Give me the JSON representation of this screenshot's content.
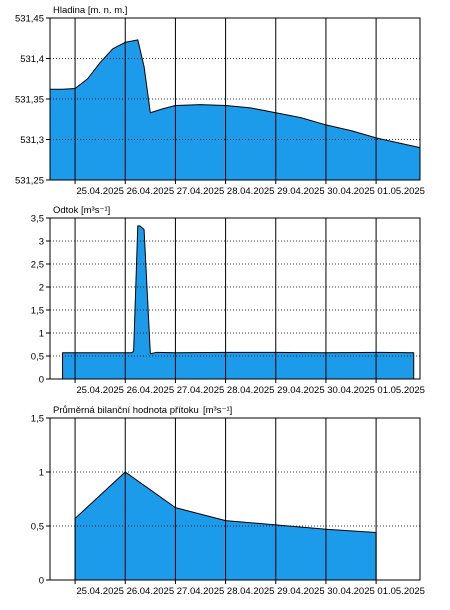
{
  "colors": {
    "fill": "#1c9bea",
    "outline": "#000000",
    "grid": "#000000",
    "background": "#ffffff"
  },
  "chart_data": [
    {
      "type": "area",
      "title": "Hladina [m. n. m.]",
      "x_ticks": [
        "25.04.2025",
        "26.04.2025",
        "27.04.2025",
        "28.04.2025",
        "29.04.2025",
        "30.04.2025",
        "01.05.2025"
      ],
      "x_range": [
        "24.04.2025 12:00",
        "01.05.2025 21:00"
      ],
      "ylim": [
        531.25,
        531.45
      ],
      "y_ticks": [
        531.25,
        531.3,
        531.35,
        531.4,
        531.45
      ],
      "y_tick_labels": [
        "531,25",
        "531,3",
        "531,35",
        "531,4",
        "531,45"
      ],
      "grid": {
        "x": "solid",
        "y": "dotted"
      },
      "series": [
        {
          "x": [
            "24.04.2025 12:00",
            "24.04.2025 18:00",
            "25.04.2025 00:00",
            "25.04.2025 06:00",
            "25.04.2025 12:00",
            "25.04.2025 18:00",
            "26.04.2025 00:00",
            "26.04.2025 06:00",
            "26.04.2025 09:00",
            "26.04.2025 12:00",
            "26.04.2025 18:00",
            "27.04.2025 00:00",
            "27.04.2025 12:00",
            "28.04.2025 00:00",
            "28.04.2025 12:00",
            "29.04.2025 00:00",
            "29.04.2025 12:00",
            "30.04.2025 00:00",
            "30.04.2025 12:00",
            "01.05.2025 00:00",
            "01.05.2025 12:00",
            "01.05.2025 21:00"
          ],
          "y": [
            531.362,
            531.362,
            531.363,
            531.375,
            531.395,
            531.412,
            531.42,
            531.423,
            531.39,
            531.333,
            531.338,
            531.342,
            531.343,
            531.342,
            531.339,
            531.333,
            531.327,
            531.318,
            531.311,
            531.302,
            531.295,
            531.29
          ]
        }
      ]
    },
    {
      "type": "area",
      "title": "Odtok [m³s⁻¹]",
      "x_ticks": [
        "25.04.2025",
        "26.04.2025",
        "27.04.2025",
        "28.04.2025",
        "29.04.2025",
        "30.04.2025",
        "01.05.2025"
      ],
      "x_range": [
        "24.04.2025 12:00",
        "01.05.2025 21:00"
      ],
      "ylim": [
        0,
        3.5
      ],
      "y_ticks": [
        0,
        0.5,
        1,
        1.5,
        2,
        2.5,
        3,
        3.5
      ],
      "y_tick_labels": [
        "0",
        "0,5",
        "1",
        "1,5",
        "2",
        "2,5",
        "3",
        "3,5"
      ],
      "grid": {
        "x": "solid",
        "y": "dotted"
      },
      "series": [
        {
          "x": [
            "24.04.2025 18:00",
            "25.04.2025 12:00",
            "26.04.2025 00:00",
            "26.04.2025 03:00",
            "26.04.2025 04:00",
            "26.04.2025 06:00",
            "26.04.2025 07:00",
            "26.04.2025 09:00",
            "26.04.2025 12:00",
            "26.04.2025 15:00",
            "27.04.2025 00:00",
            "28.04.2025 00:00",
            "29.04.2025 00:00",
            "30.04.2025 00:00",
            "01.05.2025 00:00",
            "01.05.2025 18:00"
          ],
          "y": [
            0.57,
            0.57,
            0.57,
            0.57,
            0.6,
            3.33,
            3.33,
            3.25,
            0.55,
            0.58,
            0.57,
            0.58,
            0.58,
            0.57,
            0.58,
            0.57
          ]
        }
      ]
    },
    {
      "type": "area",
      "title": "Průměrná bilanční hodnota přítoku",
      "unit": "[m³s⁻¹]",
      "x_ticks": [
        "25.04.2025",
        "26.04.2025",
        "27.04.2025",
        "28.04.2025",
        "29.04.2025",
        "30.04.2025",
        "01.05.2025"
      ],
      "x_range": [
        "24.04.2025 12:00",
        "01.05.2025 21:00"
      ],
      "ylim": [
        0,
        1.5
      ],
      "y_ticks": [
        0,
        0.5,
        1,
        1.5
      ],
      "y_tick_labels": [
        "0",
        "0,5",
        "1",
        "1,5"
      ],
      "grid": {
        "x": "solid",
        "y": "dotted"
      },
      "series": [
        {
          "x": [
            "25.04.2025 00:00",
            "26.04.2025 00:00",
            "27.04.2025 00:00",
            "28.04.2025 00:00",
            "29.04.2025 00:00",
            "30.04.2025 00:00",
            "01.05.2025 00:00"
          ],
          "y": [
            0.57,
            1.0,
            0.67,
            0.55,
            0.51,
            0.47,
            0.44
          ]
        }
      ]
    }
  ]
}
